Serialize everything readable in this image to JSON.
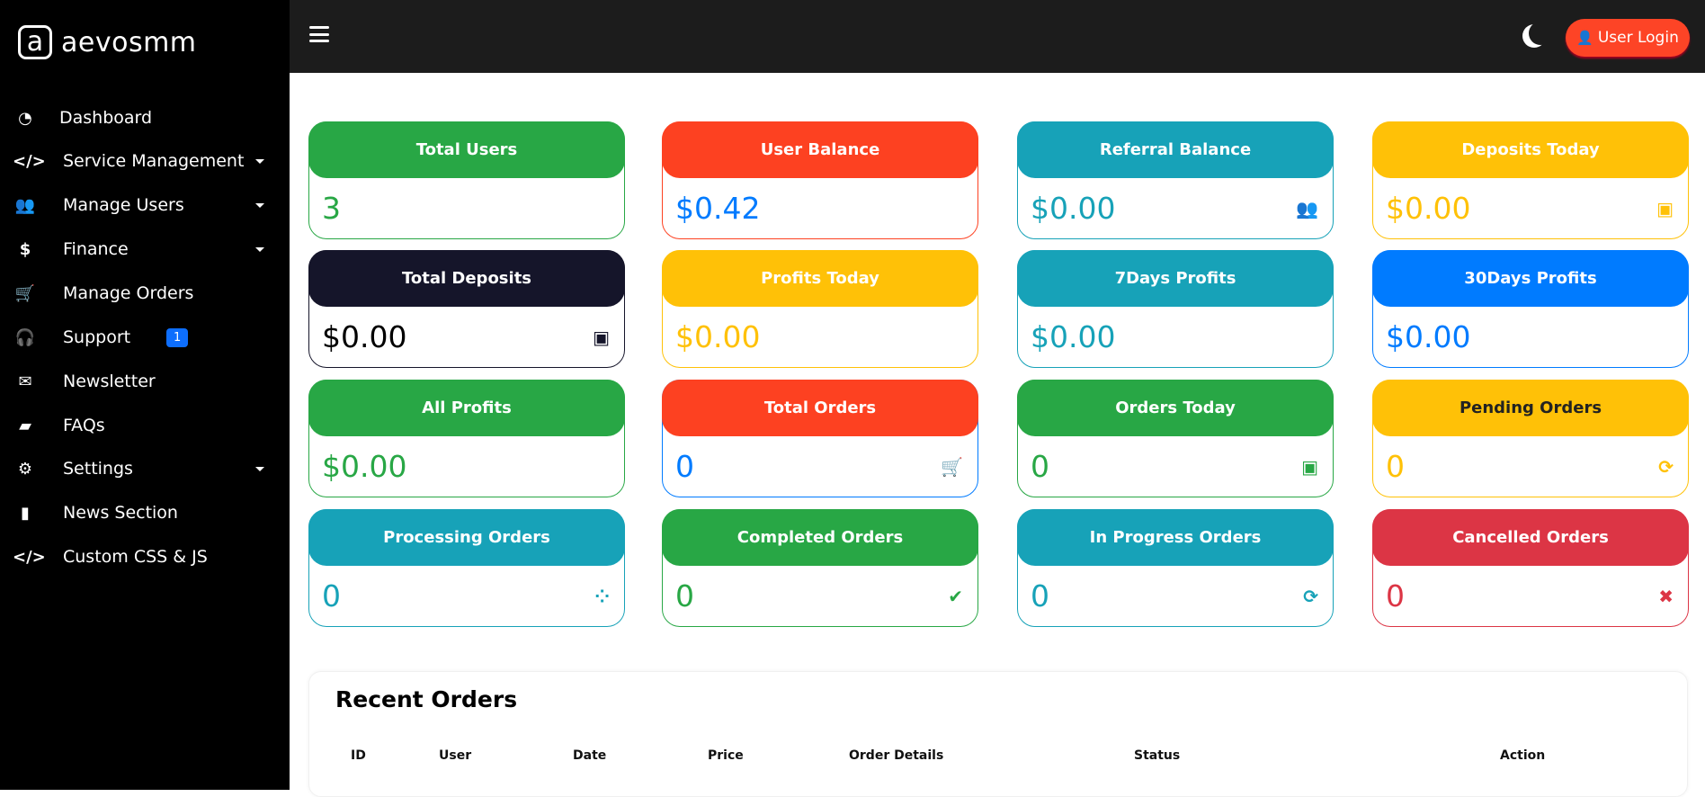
{
  "brand": {
    "logo_glyph": "a",
    "name": "aevosmm"
  },
  "sidebar": {
    "items": [
      {
        "label": "Dashboard",
        "icon": "tachometer-icon",
        "glyph": "◔",
        "caret": false
      },
      {
        "label": "Service Management",
        "icon": "code-icon",
        "glyph": "</>",
        "caret": true
      },
      {
        "label": "Manage Users",
        "icon": "users-icon",
        "glyph": "👥",
        "caret": true
      },
      {
        "label": "Finance",
        "icon": "dollar-icon",
        "glyph": "$",
        "caret": true
      },
      {
        "label": "Manage Orders",
        "icon": "cart-icon",
        "glyph": "🛒",
        "caret": false
      },
      {
        "label": "Support",
        "icon": "headset-icon",
        "glyph": "🎧",
        "caret": false,
        "badge": "1"
      },
      {
        "label": "Newsletter",
        "icon": "envelope-icon",
        "glyph": "✉",
        "caret": false
      },
      {
        "label": "FAQs",
        "icon": "folder-icon",
        "glyph": "▰",
        "caret": false
      },
      {
        "label": "Settings",
        "icon": "cogs-icon",
        "glyph": "⚙",
        "caret": true
      },
      {
        "label": "News Section",
        "icon": "file-icon",
        "glyph": "▮",
        "caret": false
      },
      {
        "label": "Custom CSS & JS",
        "icon": "code-icon",
        "glyph": "</>",
        "caret": false
      }
    ]
  },
  "topbar": {
    "login_label": "User Login",
    "login_color": "#fd4426"
  },
  "cards": [
    {
      "title": "Total Users",
      "value": "3",
      "color": "#28a745",
      "icon": "",
      "glyph": ""
    },
    {
      "title": "User Balance",
      "value": "$0.42",
      "color": "#fd4121",
      "value_color": "#007bff",
      "icon": "",
      "glyph": ""
    },
    {
      "title": "Referral Balance",
      "value": "$0.00",
      "color": "#17a2b8",
      "icon": "users-icon",
      "glyph": "👥"
    },
    {
      "title": "Deposits Today",
      "value": "$0.00",
      "color": "#ffc107",
      "icon": "money-bill-icon",
      "glyph": "▣"
    },
    {
      "title": "Total Deposits",
      "value": "$0.00",
      "color": "#15152a",
      "value_color": "#000000",
      "icon": "money-bill-icon",
      "glyph": "▣"
    },
    {
      "title": "Profits Today",
      "value": "$0.00",
      "color": "#ffc107",
      "icon": "",
      "glyph": ""
    },
    {
      "title": "7Days Profits",
      "value": "$0.00",
      "color": "#17a2b8",
      "icon": "",
      "glyph": ""
    },
    {
      "title": "30Days Profits",
      "value": "$0.00",
      "color": "#007bff",
      "icon": "",
      "glyph": ""
    },
    {
      "title": "All Profits",
      "value": "$0.00",
      "color": "#28a745",
      "icon": "",
      "glyph": ""
    },
    {
      "title": "Total Orders",
      "value": "0",
      "color": "#fd4121",
      "value_color": "#007bff",
      "border": "#007bff",
      "icon": "cart-icon",
      "glyph": "🛒",
      "icon_color": "#007bff"
    },
    {
      "title": "Orders Today",
      "value": "0",
      "color": "#28a745",
      "icon": "money-bill-icon",
      "glyph": "▣"
    },
    {
      "title": "Pending Orders",
      "value": "0",
      "color": "#ffc107",
      "title_color": "#222222",
      "icon": "sync-icon",
      "glyph": "⟳"
    },
    {
      "title": "Processing Orders",
      "value": "0",
      "color": "#17a2b8",
      "icon": "spinner-icon",
      "glyph": "⁘"
    },
    {
      "title": "Completed Orders",
      "value": "0",
      "color": "#28a745",
      "icon": "check-circle-icon",
      "glyph": "✔"
    },
    {
      "title": "In Progress Orders",
      "value": "0",
      "color": "#17a2b8",
      "icon": "sync-icon",
      "glyph": "⟳"
    },
    {
      "title": "Cancelled Orders",
      "value": "0",
      "color": "#dc3545",
      "icon": "times-circle-icon",
      "glyph": "✖"
    }
  ],
  "recent_orders": {
    "title": "Recent Orders",
    "columns": [
      "ID",
      "User",
      "Date",
      "Price",
      "Order Details",
      "Status",
      "Action"
    ]
  }
}
